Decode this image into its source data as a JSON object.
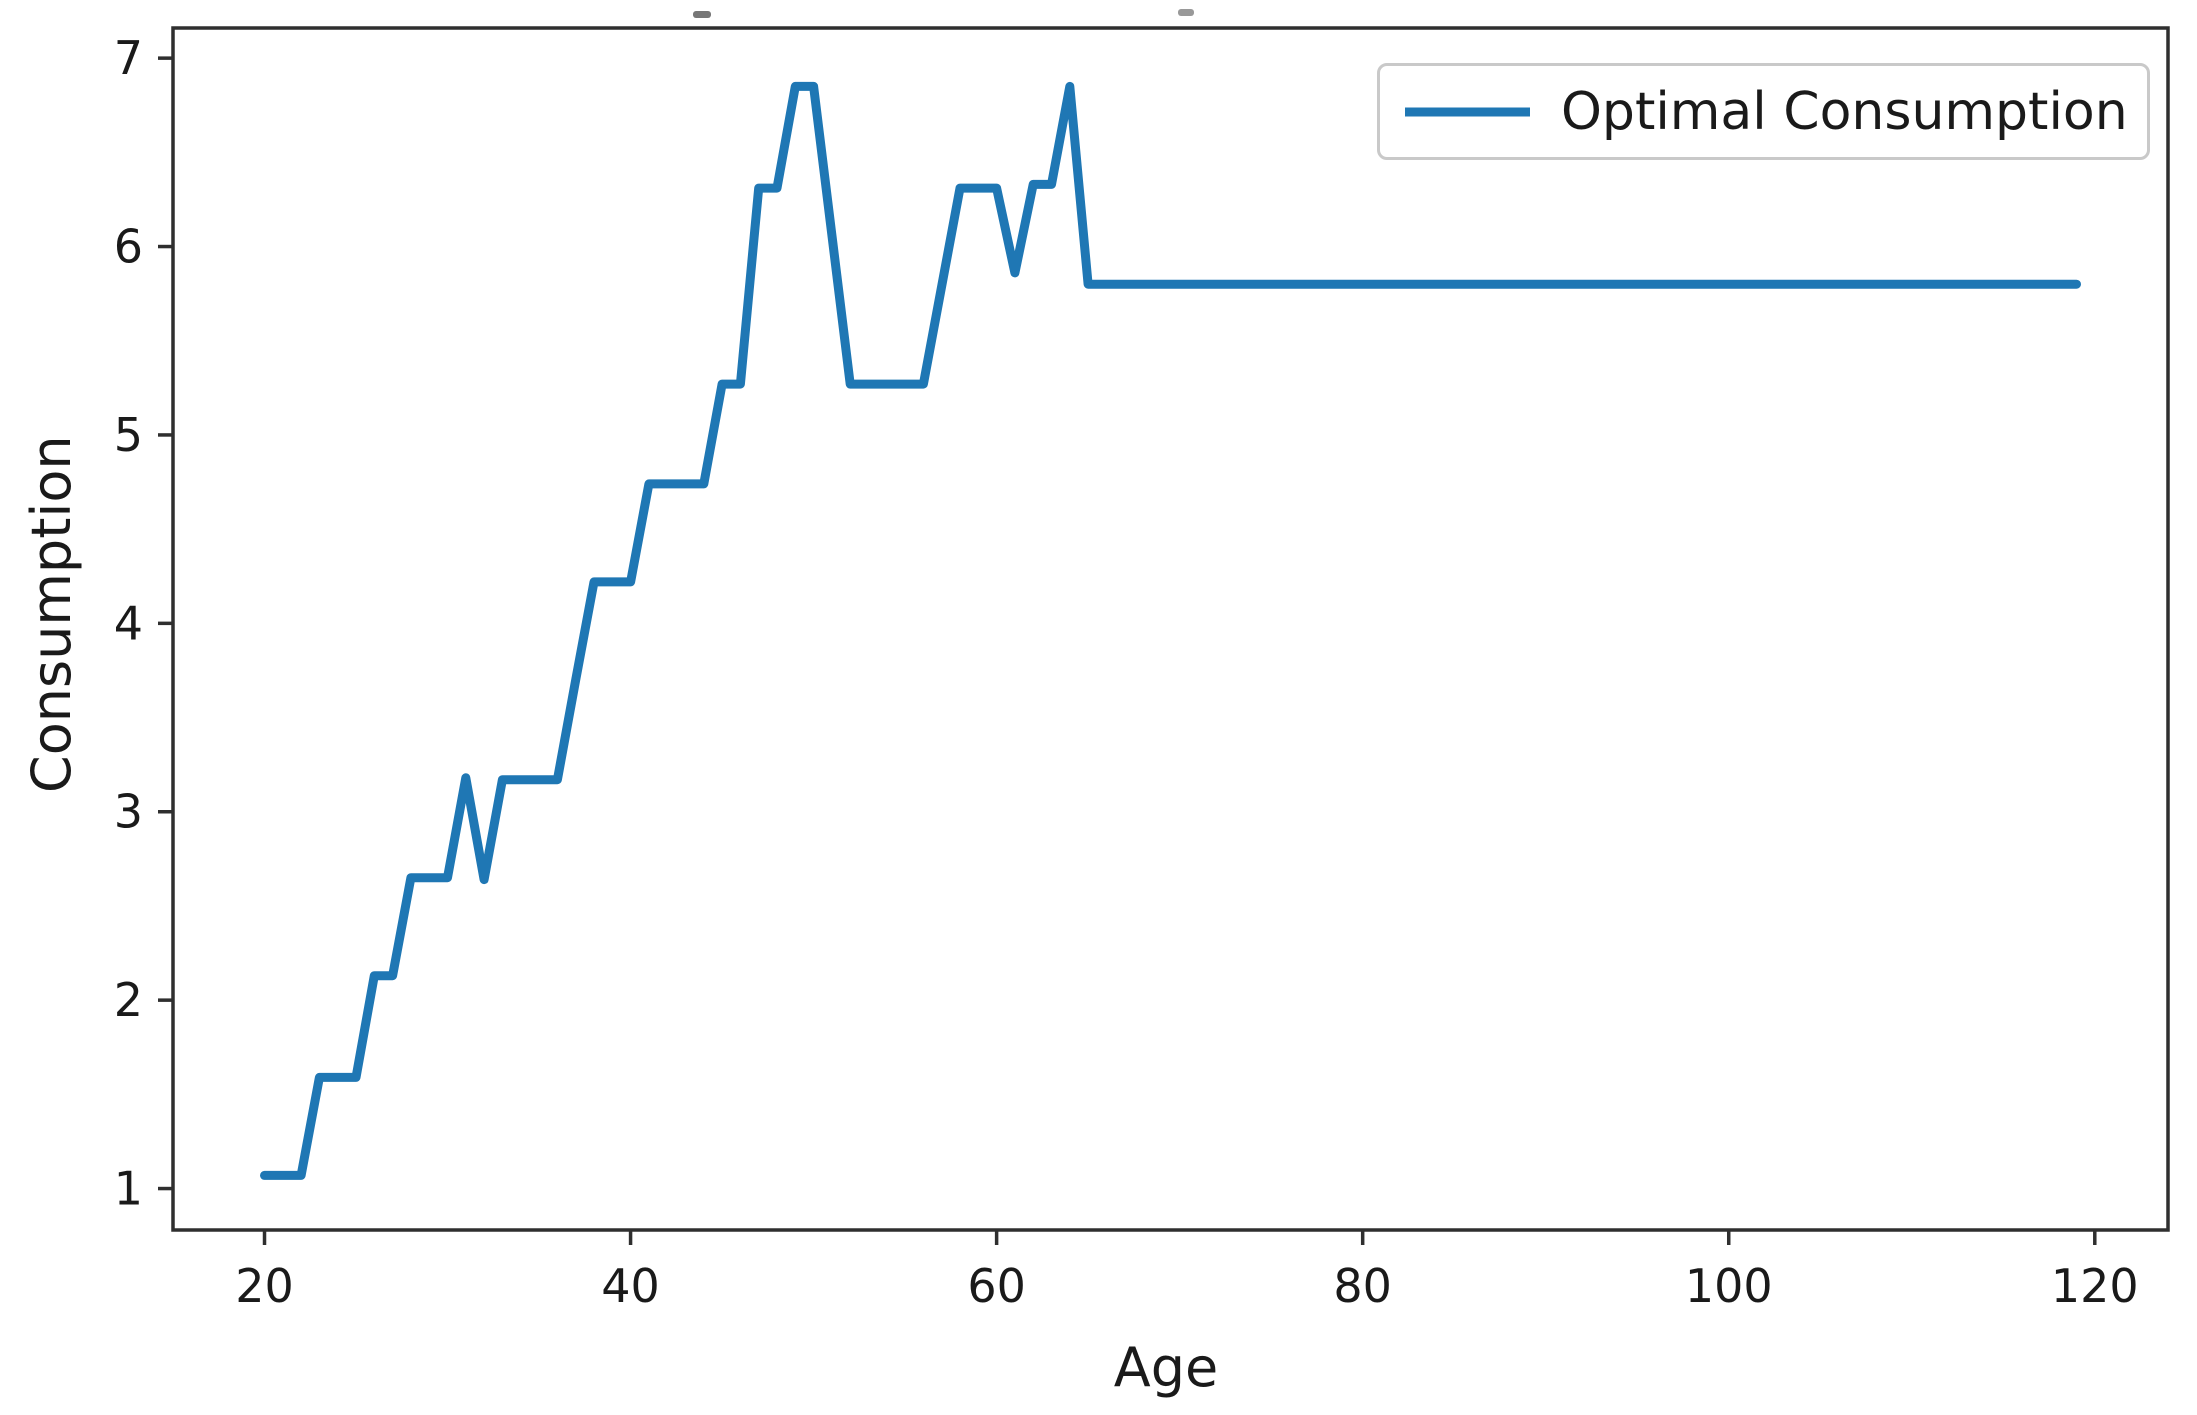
{
  "chart_data": {
    "type": "line",
    "title": "",
    "xlabel": "Age",
    "ylabel": "Consumption",
    "legend": [
      "Optimal Consumption"
    ],
    "legend_position": "upper right",
    "grid": false,
    "line_color": "#1f77b4",
    "axis_color": "#2f2f2f",
    "text_color": "#1a1a1a",
    "xlim": [
      15.0,
      124.0
    ],
    "ylim": [
      0.78,
      7.16
    ],
    "x_ticks": [
      20,
      40,
      60,
      80,
      100,
      120
    ],
    "y_ticks": [
      1,
      2,
      3,
      4,
      5,
      6,
      7
    ],
    "series": [
      {
        "name": "Optimal Consumption",
        "x": [
          20,
          21,
          22,
          23,
          24,
          25,
          26,
          27,
          28,
          29,
          30,
          31,
          32,
          33,
          34,
          35,
          36,
          37,
          38,
          39,
          40,
          41,
          42,
          43,
          44,
          45,
          46,
          47,
          48,
          49,
          50,
          51,
          52,
          53,
          54,
          55,
          56,
          57,
          58,
          59,
          60,
          61,
          62,
          63,
          64,
          65,
          66,
          67,
          68,
          69,
          70,
          71,
          72,
          73,
          74,
          75,
          76,
          77,
          78,
          79,
          80,
          81,
          82,
          83,
          84,
          85,
          86,
          87,
          88,
          89,
          90,
          91,
          92,
          93,
          94,
          95,
          96,
          97,
          98,
          99,
          100,
          101,
          102,
          103,
          104,
          105,
          106,
          107,
          108,
          109,
          110,
          111,
          112,
          113,
          114,
          115,
          116,
          117,
          118,
          119
        ],
        "y": [
          1.07,
          1.07,
          1.07,
          1.59,
          1.59,
          1.59,
          2.13,
          2.13,
          2.65,
          2.65,
          2.65,
          3.18,
          2.64,
          3.17,
          3.17,
          3.17,
          3.17,
          3.7,
          4.22,
          4.22,
          4.22,
          4.74,
          4.74,
          4.74,
          4.74,
          5.27,
          5.27,
          6.31,
          6.31,
          6.85,
          6.85,
          6.06,
          5.27,
          5.27,
          5.27,
          5.27,
          5.27,
          5.79,
          6.31,
          6.31,
          6.31,
          5.86,
          6.33,
          6.33,
          6.85,
          5.8,
          5.8,
          5.8,
          5.8,
          5.8,
          5.8,
          5.8,
          5.8,
          5.8,
          5.8,
          5.8,
          5.8,
          5.8,
          5.8,
          5.8,
          5.8,
          5.8,
          5.8,
          5.8,
          5.8,
          5.8,
          5.8,
          5.8,
          5.8,
          5.8,
          5.8,
          5.8,
          5.8,
          5.8,
          5.8,
          5.8,
          5.8,
          5.8,
          5.8,
          5.8,
          5.8,
          5.8,
          5.8,
          5.8,
          5.8,
          5.8,
          5.8,
          5.8,
          5.8,
          5.8,
          5.8,
          5.8,
          5.8,
          5.8,
          5.8,
          5.8,
          5.8,
          5.8,
          5.8,
          5.8
        ]
      }
    ]
  }
}
